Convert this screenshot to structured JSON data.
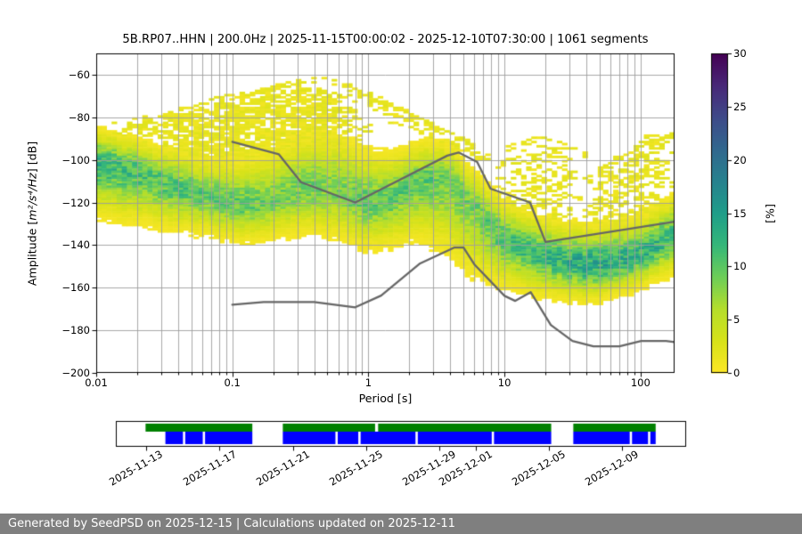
{
  "header": {
    "title": "5B.RP07..HHN | 200.0Hz | 2025-11-15T00:00:02 - 2025-12-10T07:30:00 | 1061 segments"
  },
  "footer": {
    "text": "Generated by SeedPSD on 2025-12-15 | Calculations updated on 2025-12-11"
  },
  "chart_data": {
    "type": "heatmap",
    "seed": 42,
    "title": "5B.RP07..HHN | 200.0Hz | 2025-11-15T00:00:02 - 2025-12-10T07:30:00 | 1061 segments",
    "xlabel": "Period [s]",
    "ylabel": {
      "prefix": "Amplitude [",
      "math": "m²/s⁴/Hz",
      "suffix": "] [dB]"
    },
    "xlim_log10": [
      -2.0,
      2.25
    ],
    "ylim": [
      -200,
      -50
    ],
    "x_ticks": [
      {
        "value": 0.01,
        "label": "0.01"
      },
      {
        "value": 0.1,
        "label": "0.1"
      },
      {
        "value": 1,
        "label": "1"
      },
      {
        "value": 10,
        "label": "10"
      },
      {
        "value": 100,
        "label": "100"
      }
    ],
    "y_ticks": [
      {
        "value": -60,
        "label": "−60"
      },
      {
        "value": -80,
        "label": "−80"
      },
      {
        "value": -100,
        "label": "−100"
      },
      {
        "value": -120,
        "label": "−120"
      },
      {
        "value": -140,
        "label": "−140"
      },
      {
        "value": -160,
        "label": "−160"
      },
      {
        "value": -180,
        "label": "−180"
      },
      {
        "value": -200,
        "label": "−200"
      }
    ],
    "grid_color": "#9e9e9e",
    "frame_color": "#000000",
    "colorbar": {
      "label": "[%]",
      "min": 0,
      "max": 30,
      "ticks": [
        {
          "value": 0,
          "label": "0"
        },
        {
          "value": 5,
          "label": "5"
        },
        {
          "value": 10,
          "label": "10"
        },
        {
          "value": 15,
          "label": "15"
        },
        {
          "value": 20,
          "label": "20"
        },
        {
          "value": 25,
          "label": "25"
        },
        {
          "value": 30,
          "label": "30"
        }
      ],
      "colormap": "viridis_r",
      "stops": [
        "#fde725",
        "#d8e219",
        "#b5de2b",
        "#6ece58",
        "#35b779",
        "#1f9e89",
        "#26828e",
        "#31688e",
        "#3e4a89",
        "#482878",
        "#440154"
      ]
    },
    "psd_band_profile_comment": "columns: [log10(period s), mode dB, sigma up dB, sigma down dB, peak probability %]",
    "psd_band_profile": [
      [
        -2.0,
        -101,
        7,
        11,
        13
      ],
      [
        -1.8,
        -104,
        7,
        11,
        12
      ],
      [
        -1.6,
        -108,
        7,
        10,
        11
      ],
      [
        -1.4,
        -113,
        8,
        9,
        11
      ],
      [
        -1.2,
        -117,
        8,
        8,
        10
      ],
      [
        -1.0,
        -120,
        9,
        8,
        10
      ],
      [
        -0.85,
        -121,
        10,
        8,
        10
      ],
      [
        -0.7,
        -119,
        11,
        8,
        9
      ],
      [
        -0.5,
        -115,
        12,
        9,
        9
      ],
      [
        -0.35,
        -113,
        12,
        10,
        9
      ],
      [
        -0.2,
        -115,
        12,
        10,
        9
      ],
      [
        0.0,
        -120,
        11,
        10,
        10
      ],
      [
        0.15,
        -119,
        10,
        10,
        10
      ],
      [
        0.3,
        -113,
        9,
        11,
        10
      ],
      [
        0.45,
        -108,
        8,
        14,
        10
      ],
      [
        0.6,
        -110,
        8,
        16,
        9
      ],
      [
        0.75,
        -120,
        8,
        15,
        9
      ],
      [
        0.9,
        -131,
        8,
        12,
        10
      ],
      [
        1.0,
        -137,
        8,
        10,
        11
      ],
      [
        1.2,
        -143,
        8,
        9,
        12
      ],
      [
        1.4,
        -147,
        8,
        8,
        13
      ],
      [
        1.6,
        -149,
        8,
        8,
        14
      ],
      [
        1.8,
        -148,
        8,
        7,
        14
      ],
      [
        2.0,
        -144,
        8,
        7,
        13
      ],
      [
        2.1,
        -141,
        8,
        7,
        13
      ],
      [
        2.25,
        -136,
        9,
        8,
        12
      ]
    ],
    "low_probability_clouds": [
      {
        "range": [
          -1.75,
          0.05
        ],
        "density": 0.8,
        "top": [
          [
            -1.75,
            -80
          ],
          [
            -1.45,
            -76
          ],
          [
            -1.1,
            -70
          ],
          [
            -0.75,
            -66
          ],
          [
            -0.5,
            -64
          ],
          [
            -0.3,
            -66
          ],
          [
            -0.1,
            -72
          ],
          [
            0.05,
            -80
          ]
        ]
      },
      {
        "range": [
          0.9,
          1.6
        ],
        "density": 0.38,
        "top": [
          [
            0.9,
            -106
          ],
          [
            1.1,
            -92
          ],
          [
            1.25,
            -86
          ],
          [
            1.4,
            -90
          ],
          [
            1.6,
            -103
          ]
        ]
      },
      {
        "range": [
          1.55,
          2.25
        ],
        "density": 0.55,
        "top": [
          [
            1.55,
            -110
          ],
          [
            1.85,
            -99
          ],
          [
            2.05,
            -88
          ],
          [
            2.25,
            -84
          ]
        ]
      },
      {
        "range": [
          -2.0,
          -1.6
        ],
        "density": 0.45,
        "top": [
          [
            -2.0,
            -84
          ],
          [
            -1.8,
            -80
          ],
          [
            -1.6,
            -79
          ]
        ]
      }
    ],
    "low_probability_streaks": [
      {
        "density": 0.55,
        "pts": [
          [
            -0.95,
            -72
          ],
          [
            -0.6,
            -64
          ],
          [
            -0.35,
            -62
          ],
          [
            -0.15,
            -65
          ],
          [
            0.1,
            -72
          ],
          [
            0.45,
            -83
          ],
          [
            0.8,
            -94
          ]
        ]
      },
      {
        "density": 0.5,
        "pts": [
          [
            -0.15,
            -68
          ],
          [
            0.2,
            -76
          ],
          [
            0.55,
            -86
          ],
          [
            0.9,
            -97
          ]
        ]
      },
      {
        "density": 0.5,
        "pts": [
          [
            0.0,
            -74
          ],
          [
            0.35,
            -83
          ],
          [
            0.7,
            -93
          ],
          [
            1.0,
            -102
          ]
        ]
      },
      {
        "density": 0.45,
        "pts": [
          [
            0.15,
            -81
          ],
          [
            0.5,
            -90
          ],
          [
            0.85,
            -100
          ]
        ]
      },
      {
        "density": 0.45,
        "pts": [
          [
            1.0,
            -95
          ],
          [
            1.3,
            -89
          ],
          [
            1.6,
            -98
          ]
        ]
      },
      {
        "density": 0.5,
        "pts": [
          [
            1.7,
            -104
          ],
          [
            2.0,
            -93
          ],
          [
            2.25,
            -88
          ]
        ]
      },
      {
        "density": 0.4,
        "pts": [
          [
            -1.9,
            -86
          ],
          [
            -1.6,
            -81
          ],
          [
            -1.35,
            -77
          ]
        ]
      }
    ],
    "noise_models": {
      "color": "#666666",
      "nhnm": [
        [
          0.1,
          -91.5
        ],
        [
          0.22,
          -97.4
        ],
        [
          0.32,
          -110.5
        ],
        [
          0.8,
          -120.0
        ],
        [
          3.8,
          -98.0
        ],
        [
          4.6,
          -96.5
        ],
        [
          6.3,
          -101.0
        ],
        [
          7.9,
          -113.5
        ],
        [
          15.4,
          -120.0
        ],
        [
          20.0,
          -138.5
        ],
        [
          178.0,
          -129.0
        ]
      ],
      "nlnm": [
        [
          0.1,
          -168.0
        ],
        [
          0.17,
          -166.7
        ],
        [
          0.4,
          -166.7
        ],
        [
          0.8,
          -169.2
        ],
        [
          1.24,
          -163.7
        ],
        [
          2.4,
          -148.6
        ],
        [
          4.3,
          -141.1
        ],
        [
          5.0,
          -141.1
        ],
        [
          6.0,
          -149.0
        ],
        [
          10.0,
          -163.8
        ],
        [
          12.0,
          -166.2
        ],
        [
          15.6,
          -162.1
        ],
        [
          21.9,
          -177.5
        ],
        [
          31.6,
          -185.0
        ],
        [
          45.0,
          -187.5
        ],
        [
          70.0,
          -187.5
        ],
        [
          101.0,
          -185.0
        ],
        [
          154.0,
          -185.0
        ],
        [
          178.0,
          -185.5
        ]
      ]
    },
    "timeline": {
      "green_color": "#008000",
      "blue_color": "#0000ff",
      "axis_start": "2025-11-11T08:00:00",
      "axis_end": "2025-12-12T12:00:00",
      "ticks": [
        {
          "date": "2025-11-13T00:00:00",
          "label": "2025-11-13"
        },
        {
          "date": "2025-11-17T00:00:00",
          "label": "2025-11-17"
        },
        {
          "date": "2025-11-21T00:00:00",
          "label": "2025-11-21"
        },
        {
          "date": "2025-11-25T00:00:00",
          "label": "2025-11-25"
        },
        {
          "date": "2025-11-29T00:00:00",
          "label": "2025-11-29"
        },
        {
          "date": "2025-12-01T00:00:00",
          "label": "2025-12-01"
        },
        {
          "date": "2025-12-05T00:00:00",
          "label": "2025-12-05"
        },
        {
          "date": "2025-12-09T00:00:00",
          "label": "2025-12-09"
        }
      ],
      "green_segments": [
        [
          "2025-11-12T23:00:00",
          "2025-11-18T19:00:00"
        ],
        [
          "2025-11-20T11:00:00",
          "2025-12-05T03:00:00"
        ],
        [
          "2025-12-06T08:00:00",
          "2025-12-10T20:00:00"
        ]
      ],
      "green_gaps": [
        [
          "2025-11-25T12:00:00",
          "2025-11-25T16:00:00"
        ]
      ],
      "blue_segments": [
        [
          "2025-11-14T01:00:00",
          "2025-11-18T19:00:00"
        ],
        [
          "2025-11-20T11:00:00",
          "2025-12-05T03:00:00"
        ],
        [
          "2025-12-06T08:00:00",
          "2025-12-10T20:00:00"
        ]
      ],
      "blue_gaps": [
        [
          "2025-11-15T00:00:00",
          "2025-11-15T03:00:00"
        ],
        [
          "2025-11-16T02:00:00",
          "2025-11-16T05:00:00"
        ],
        [
          "2025-11-23T08:00:00",
          "2025-11-23T11:00:00"
        ],
        [
          "2025-11-24T14:00:00",
          "2025-11-24T17:00:00"
        ],
        [
          "2025-11-27T17:00:00",
          "2025-11-27T20:00:00"
        ],
        [
          "2025-12-01T21:00:00",
          "2025-12-02T00:00:00"
        ],
        [
          "2025-12-09T10:00:00",
          "2025-12-09T13:00:00"
        ],
        [
          "2025-12-10T10:00:00",
          "2025-12-10T13:00:00"
        ]
      ]
    }
  }
}
